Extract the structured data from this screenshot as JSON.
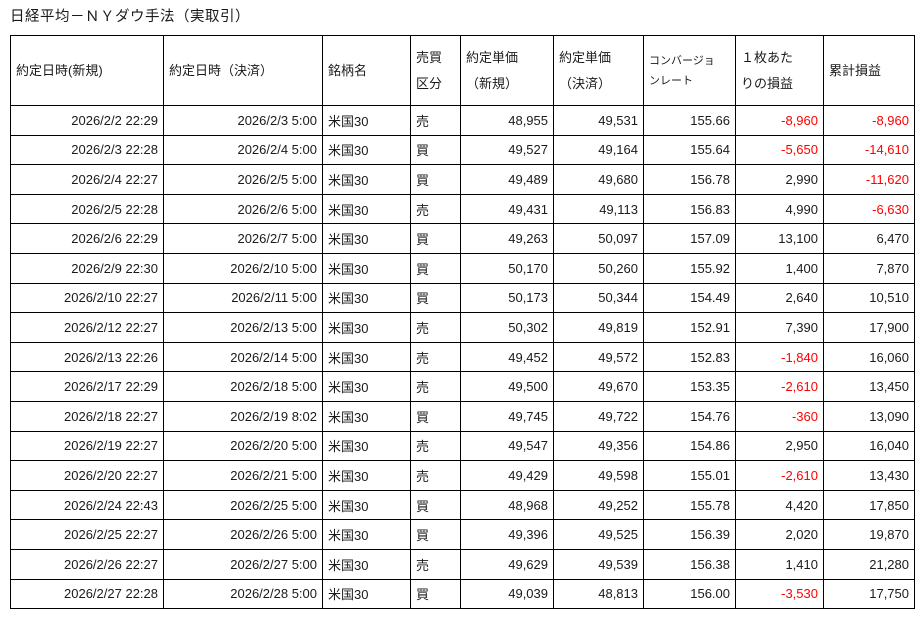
{
  "page": {
    "title": "日経平均－ＮＹダウ手法（実取引）"
  },
  "colors": {
    "negative_value": "#ff0000",
    "text": "#1a1a1a",
    "border": "#000000"
  },
  "table": {
    "headers": {
      "open_datetime": {
        "line1": "約定日時(新規)"
      },
      "close_datetime": {
        "line1": "約定日時（決済）"
      },
      "symbol": {
        "line1": "銘柄名"
      },
      "side": {
        "line1": "売買",
        "line2": "区分"
      },
      "open_price": {
        "line1": "約定単価",
        "line2": "（新規）"
      },
      "close_price": {
        "line1": "約定単価",
        "line2": "（決済）"
      },
      "conversion_rate": {
        "line1": "コンバージョ",
        "line2": "ンレート"
      },
      "unit_pl": {
        "line1": "１枚あた",
        "line2": "りの損益"
      },
      "cumulative_pl": {
        "line1": "累計損益"
      }
    },
    "rows": [
      {
        "open": "2026/2/2 22:29",
        "close": "2026/2/3 5:00",
        "symbol": "米国30",
        "side": "売",
        "open_price": "48,955",
        "close_price": "49,531",
        "rate": "155.66",
        "pl": "-8,960",
        "cum": "-8,960"
      },
      {
        "open": "2026/2/3 22:28",
        "close": "2026/2/4 5:00",
        "symbol": "米国30",
        "side": "買",
        "open_price": "49,527",
        "close_price": "49,164",
        "rate": "155.64",
        "pl": "-5,650",
        "cum": "-14,610"
      },
      {
        "open": "2026/2/4 22:27",
        "close": "2026/2/5 5:00",
        "symbol": "米国30",
        "side": "買",
        "open_price": "49,489",
        "close_price": "49,680",
        "rate": "156.78",
        "pl": "2,990",
        "cum": "-11,620"
      },
      {
        "open": "2026/2/5 22:28",
        "close": "2026/2/6 5:00",
        "symbol": "米国30",
        "side": "売",
        "open_price": "49,431",
        "close_price": "49,113",
        "rate": "156.83",
        "pl": "4,990",
        "cum": "-6,630"
      },
      {
        "open": "2026/2/6 22:29",
        "close": "2026/2/7 5:00",
        "symbol": "米国30",
        "side": "買",
        "open_price": "49,263",
        "close_price": "50,097",
        "rate": "157.09",
        "pl": "13,100",
        "cum": "6,470"
      },
      {
        "open": "2026/2/9 22:30",
        "close": "2026/2/10 5:00",
        "symbol": "米国30",
        "side": "買",
        "open_price": "50,170",
        "close_price": "50,260",
        "rate": "155.92",
        "pl": "1,400",
        "cum": "7,870"
      },
      {
        "open": "2026/2/10 22:27",
        "close": "2026/2/11 5:00",
        "symbol": "米国30",
        "side": "買",
        "open_price": "50,173",
        "close_price": "50,344",
        "rate": "154.49",
        "pl": "2,640",
        "cum": "10,510"
      },
      {
        "open": "2026/2/12 22:27",
        "close": "2026/2/13 5:00",
        "symbol": "米国30",
        "side": "売",
        "open_price": "50,302",
        "close_price": "49,819",
        "rate": "152.91",
        "pl": "7,390",
        "cum": "17,900"
      },
      {
        "open": "2026/2/13 22:26",
        "close": "2026/2/14 5:00",
        "symbol": "米国30",
        "side": "売",
        "open_price": "49,452",
        "close_price": "49,572",
        "rate": "152.83",
        "pl": "-1,840",
        "cum": "16,060"
      },
      {
        "open": "2026/2/17 22:29",
        "close": "2026/2/18 5:00",
        "symbol": "米国30",
        "side": "売",
        "open_price": "49,500",
        "close_price": "49,670",
        "rate": "153.35",
        "pl": "-2,610",
        "cum": "13,450"
      },
      {
        "open": "2026/2/18 22:27",
        "close": "2026/2/19 8:02",
        "symbol": "米国30",
        "side": "買",
        "open_price": "49,745",
        "close_price": "49,722",
        "rate": "154.76",
        "pl": "-360",
        "cum": "13,090"
      },
      {
        "open": "2026/2/19 22:27",
        "close": "2026/2/20 5:00",
        "symbol": "米国30",
        "side": "売",
        "open_price": "49,547",
        "close_price": "49,356",
        "rate": "154.86",
        "pl": "2,950",
        "cum": "16,040"
      },
      {
        "open": "2026/2/20 22:27",
        "close": "2026/2/21 5:00",
        "symbol": "米国30",
        "side": "売",
        "open_price": "49,429",
        "close_price": "49,598",
        "rate": "155.01",
        "pl": "-2,610",
        "cum": "13,430"
      },
      {
        "open": "2026/2/24 22:43",
        "close": "2026/2/25 5:00",
        "symbol": "米国30",
        "side": "買",
        "open_price": "48,968",
        "close_price": "49,252",
        "rate": "155.78",
        "pl": "4,420",
        "cum": "17,850"
      },
      {
        "open": "2026/2/25 22:27",
        "close": "2026/2/26 5:00",
        "symbol": "米国30",
        "side": "買",
        "open_price": "49,396",
        "close_price": "49,525",
        "rate": "156.39",
        "pl": "2,020",
        "cum": "19,870"
      },
      {
        "open": "2026/2/26 22:27",
        "close": "2026/2/27 5:00",
        "symbol": "米国30",
        "side": "売",
        "open_price": "49,629",
        "close_price": "49,539",
        "rate": "156.38",
        "pl": "1,410",
        "cum": "21,280"
      },
      {
        "open": "2026/2/27 22:28",
        "close": "2026/2/28 5:00",
        "symbol": "米国30",
        "side": "買",
        "open_price": "49,039",
        "close_price": "48,813",
        "rate": "156.00",
        "pl": "-3,530",
        "cum": "17,750"
      }
    ]
  }
}
